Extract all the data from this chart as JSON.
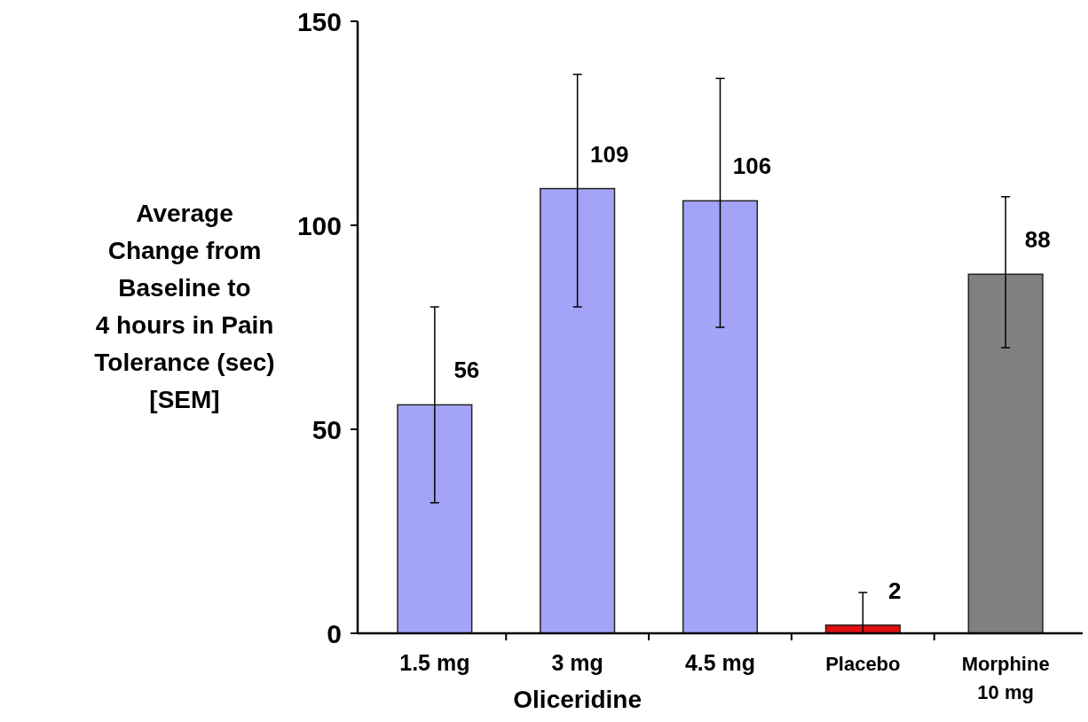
{
  "chart_data": {
    "type": "bar",
    "ylabel": "Average\nChange from\nBaseline to\n4 hours in Pain\nTolerance (sec)\n[SEM]",
    "categories": [
      "1.5 mg",
      "3 mg",
      "4.5 mg",
      "Placebo",
      "Morphine\n10 mg"
    ],
    "values": [
      56,
      109,
      106,
      2,
      88
    ],
    "colors": [
      "#a3a3f7",
      "#a3a3f7",
      "#a3a3f7",
      "#e01010",
      "#808080"
    ],
    "errors": [
      [
        32,
        80
      ],
      [
        80,
        137
      ],
      [
        75,
        136
      ],
      [
        0,
        10
      ],
      [
        70,
        107
      ]
    ],
    "ylim": [
      0,
      150
    ],
    "yticks": [
      0,
      50,
      100,
      150
    ],
    "data_labels": true,
    "xlabel": "Oliceridine"
  }
}
